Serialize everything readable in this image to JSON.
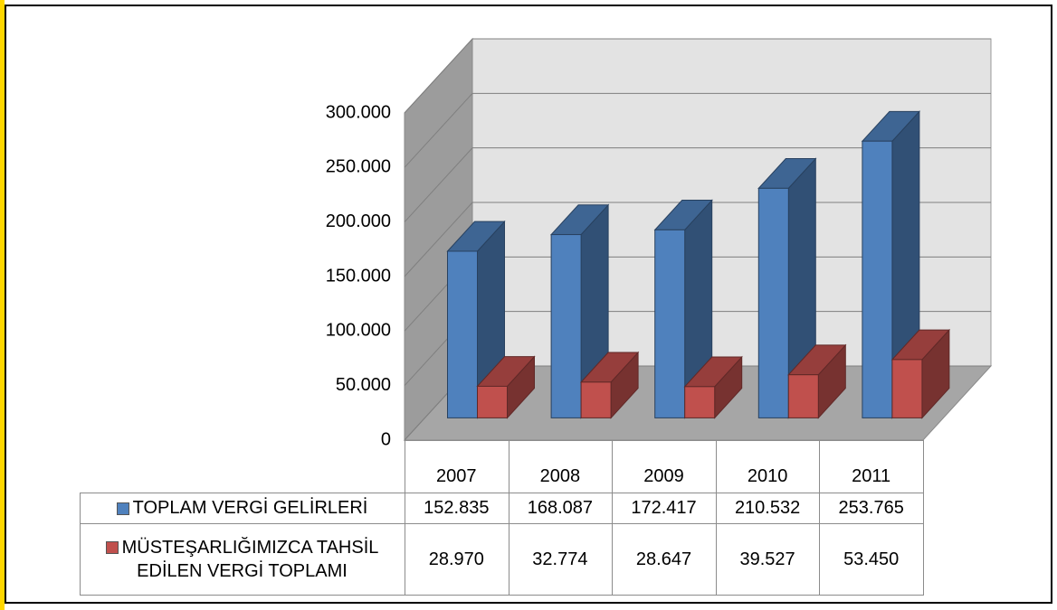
{
  "chart_data": {
    "type": "bar",
    "categories": [
      "2007",
      "2008",
      "2009",
      "2010",
      "2011"
    ],
    "series": [
      {
        "name": "TOPLAM VERGİ GELİRLERİ",
        "color": "#4f81bd",
        "values": [
          152835,
          168087,
          172417,
          210532,
          253765
        ],
        "value_labels": [
          "152.835",
          "168.087",
          "172.417",
          "210.532",
          "253.765"
        ]
      },
      {
        "name": "MÜSTEŞARLIĞIMIZCA TAHSİL EDİLEN VERGİ TOPLAMI",
        "color": "#c0504d",
        "values": [
          28970,
          32774,
          28647,
          39527,
          53450
        ],
        "value_labels": [
          "28.970",
          "32.774",
          "28.647",
          "39.527",
          "53.450"
        ]
      }
    ],
    "ylim": [
      0,
      300000
    ],
    "yticks": [
      0,
      {
        "value": 50000,
        "label": "50.000"
      },
      {
        "value": 100000,
        "label": "100.000"
      },
      {
        "value": 150000,
        "label": "150.000"
      },
      {
        "value": 200000,
        "label": "200.000"
      },
      {
        "value": 250000,
        "label": "250.000"
      },
      {
        "value": 300000,
        "label": "300.000"
      }
    ],
    "grid": true
  }
}
